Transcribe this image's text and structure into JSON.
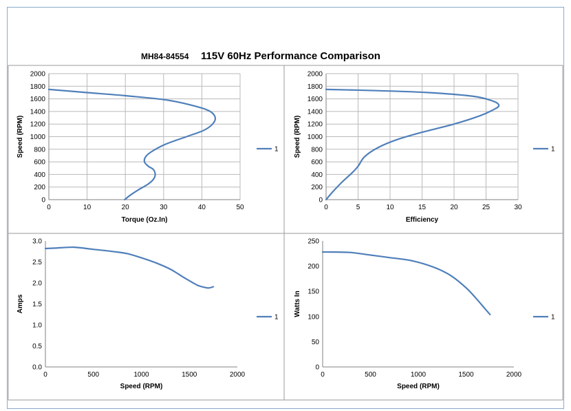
{
  "header": {
    "model": "MH84-84554",
    "title": "115V 60Hz Performance Comparison"
  },
  "colors": {
    "series": "#4f7fba",
    "grid": "#b9b9b9",
    "panel_border": "#9a9a9a"
  },
  "chart_data": [
    {
      "id": "torque",
      "type": "line",
      "xlabel": "Torque (Oz.In)",
      "ylabel": "Speed (RPM)",
      "xlim": [
        0,
        50
      ],
      "ylim": [
        0,
        2000
      ],
      "xticks": [
        0,
        10,
        20,
        30,
        40,
        50
      ],
      "yticks": [
        0,
        200,
        400,
        600,
        800,
        1000,
        1200,
        1400,
        1600,
        1800,
        2000
      ],
      "xtick_labels": [
        "0",
        "10",
        "20",
        "30",
        "40",
        "50"
      ],
      "ytick_labels": [
        "0",
        "200",
        "400",
        "600",
        "800",
        "1000",
        "1200",
        "1400",
        "1600",
        "1800",
        "2000"
      ],
      "grid": true,
      "legend": "right",
      "series": [
        {
          "name": "1",
          "x": [
            19.8,
            21.5,
            23.5,
            25.8,
            27.3,
            27.8,
            27.3,
            26.0,
            25.0,
            25.3,
            26.8,
            30.5,
            36.0,
            40.5,
            42.8,
            43.5,
            42.2,
            38.5,
            31.0,
            20.0,
            10.0,
            0.0
          ],
          "y": [
            0,
            80,
            160,
            240,
            320,
            400,
            480,
            530,
            600,
            680,
            760,
            880,
            1000,
            1100,
            1200,
            1300,
            1400,
            1480,
            1580,
            1650,
            1700,
            1750
          ]
        }
      ]
    },
    {
      "id": "efficiency",
      "type": "line",
      "xlabel": "Efficiency",
      "ylabel": "Speed (RPM)",
      "xlim": [
        0,
        30
      ],
      "ylim": [
        0,
        2000
      ],
      "xticks": [
        0,
        5,
        10,
        15,
        20,
        25,
        30
      ],
      "yticks": [
        0,
        200,
        400,
        600,
        800,
        1000,
        1200,
        1400,
        1600,
        1800,
        2000
      ],
      "xtick_labels": [
        "0",
        "5",
        "10",
        "15",
        "20",
        "25",
        "30"
      ],
      "ytick_labels": [
        "0",
        "200",
        "400",
        "600",
        "800",
        "1000",
        "1200",
        "1400",
        "1600",
        "1800",
        "2000"
      ],
      "grid": true,
      "legend": "right",
      "series": [
        {
          "name": "1",
          "x": [
            0.0,
            1.0,
            2.5,
            4.0,
            5.0,
            6.0,
            8.0,
            11.0,
            15.0,
            20.0,
            24.0,
            26.0,
            27.0,
            26.2,
            23.0,
            16.0,
            8.0,
            0.0
          ],
          "y": [
            0,
            120,
            280,
            420,
            530,
            680,
            820,
            950,
            1070,
            1200,
            1330,
            1420,
            1490,
            1560,
            1640,
            1700,
            1730,
            1750
          ]
        }
      ]
    },
    {
      "id": "amps",
      "type": "line",
      "xlabel": "Speed (RPM)",
      "ylabel": "Amps",
      "xlim": [
        0,
        2000
      ],
      "ylim": [
        0,
        3
      ],
      "xticks": [
        0,
        500,
        1000,
        1500,
        2000
      ],
      "yticks": [
        0,
        0.5,
        1,
        1.5,
        2,
        2.5,
        3
      ],
      "xtick_labels": [
        "0",
        "500",
        "1000",
        "1500",
        "2000"
      ],
      "ytick_labels": [
        "0.0",
        "0.5",
        "1.0",
        "1.5",
        "2.0",
        "2.5",
        "3.0"
      ],
      "grid": false,
      "legend": "right",
      "series": [
        {
          "name": "1",
          "x": [
            0,
            100,
            300,
            500,
            700,
            850,
            1000,
            1150,
            1300,
            1450,
            1580,
            1650,
            1700,
            1750
          ],
          "y": [
            2.82,
            2.83,
            2.85,
            2.8,
            2.75,
            2.7,
            2.6,
            2.48,
            2.33,
            2.12,
            1.95,
            1.9,
            1.88,
            1.91
          ]
        }
      ]
    },
    {
      "id": "watts",
      "type": "line",
      "xlabel": "Speed (RPM)",
      "ylabel": "Watts In",
      "xlim": [
        0,
        2000
      ],
      "ylim": [
        0,
        250
      ],
      "xticks": [
        0,
        500,
        1000,
        1500,
        2000
      ],
      "yticks": [
        0,
        50,
        100,
        150,
        200,
        250
      ],
      "xtick_labels": [
        "0",
        "500",
        "1000",
        "1500",
        "2000"
      ],
      "ytick_labels": [
        "0",
        "50",
        "100",
        "150",
        "200",
        "250"
      ],
      "grid": false,
      "legend": "right",
      "series": [
        {
          "name": "1",
          "x": [
            0,
            100,
            300,
            500,
            700,
            900,
            1050,
            1200,
            1350,
            1500,
            1600,
            1700,
            1750
          ],
          "y": [
            228,
            228,
            227,
            222,
            217,
            212,
            205,
            195,
            180,
            157,
            137,
            115,
            104
          ]
        }
      ]
    }
  ]
}
